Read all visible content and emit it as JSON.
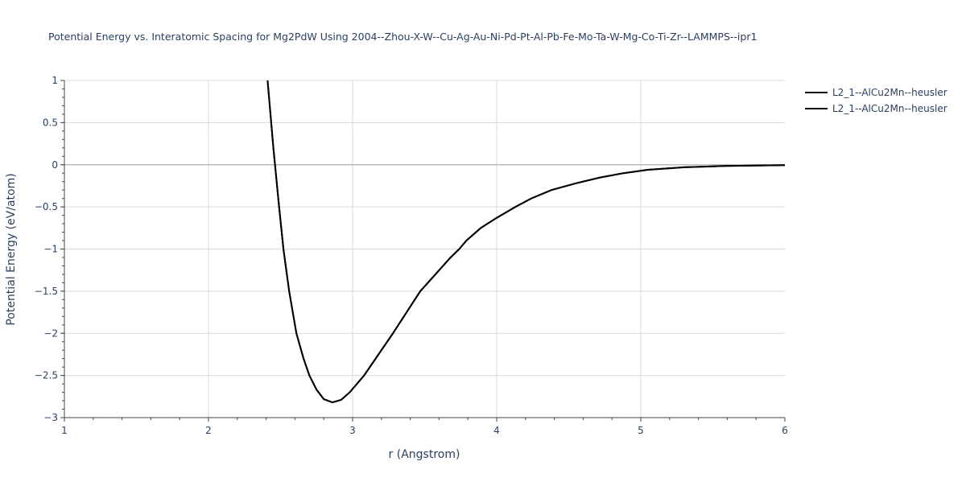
{
  "chart_data": {
    "type": "line",
    "title": "Potential Energy vs. Interatomic Spacing for Mg2PdW Using 2004--Zhou-X-W--Cu-Ag-Au-Ni-Pd-Pt-Al-Pb-Fe-Mo-Ta-W-Mg-Co-Ti-Zr--LAMMPS--ipr1",
    "xlabel": "r (Angstrom)",
    "ylabel": "Potential Energy (eV/atom)",
    "xlim": [
      1,
      6
    ],
    "ylim": [
      -3,
      1
    ],
    "xticks": [
      "1",
      "2",
      "3",
      "4",
      "5",
      "6"
    ],
    "yticks": [
      "1",
      "0.5",
      "0",
      "−0.5",
      "−1",
      "−1.5",
      "−2",
      "−2.5",
      "−3"
    ],
    "grid": true,
    "legend_position": "top-right",
    "series": [
      {
        "name": "L2_1--AlCu2Mn--heusler",
        "color": "#000000",
        "x": [
          2.41,
          2.45,
          2.49,
          2.52,
          2.56,
          2.61,
          2.66,
          2.7,
          2.75,
          2.8,
          2.86,
          2.92,
          2.98,
          3.08,
          3.28,
          3.47,
          3.68,
          3.74,
          3.79,
          3.89,
          4.0,
          4.13,
          4.24,
          4.38,
          4.55,
          4.72,
          4.88,
          5.05,
          5.3,
          5.58,
          6.0
        ],
        "y": [
          1.0,
          0.2,
          -0.5,
          -1.0,
          -1.5,
          -2.0,
          -2.3,
          -2.5,
          -2.67,
          -2.78,
          -2.82,
          -2.79,
          -2.7,
          -2.5,
          -2.0,
          -1.5,
          -1.1,
          -1.0,
          -0.9,
          -0.75,
          -0.63,
          -0.5,
          -0.4,
          -0.3,
          -0.22,
          -0.15,
          -0.1,
          -0.06,
          -0.03,
          -0.015,
          -0.005
        ]
      },
      {
        "name": "L2_1--AlCu2Mn--heusler",
        "color": "#000000",
        "x": [
          2.41,
          2.45,
          2.49,
          2.52,
          2.56,
          2.61,
          2.66,
          2.7,
          2.75,
          2.8,
          2.86,
          2.92,
          2.98,
          3.08,
          3.28,
          3.47,
          3.68,
          3.74,
          3.79,
          3.89,
          4.0,
          4.13,
          4.24,
          4.38,
          4.55,
          4.72,
          4.88,
          5.05,
          5.3,
          5.58,
          6.0
        ],
        "y": [
          1.0,
          0.2,
          -0.5,
          -1.0,
          -1.5,
          -2.0,
          -2.3,
          -2.5,
          -2.67,
          -2.78,
          -2.82,
          -2.79,
          -2.7,
          -2.5,
          -2.0,
          -1.5,
          -1.1,
          -1.0,
          -0.9,
          -0.75,
          -0.63,
          -0.5,
          -0.4,
          -0.3,
          -0.22,
          -0.15,
          -0.1,
          -0.06,
          -0.03,
          -0.015,
          -0.005
        ]
      }
    ]
  }
}
